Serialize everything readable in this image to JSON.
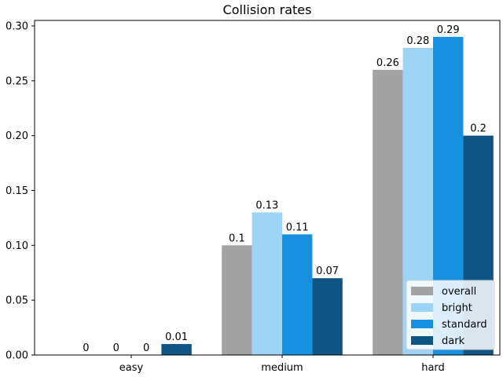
{
  "chart_data": {
    "type": "bar",
    "title": "Collision rates",
    "xlabel": "",
    "ylabel": "",
    "categories": [
      "easy",
      "medium",
      "hard"
    ],
    "series": [
      {
        "name": "overall",
        "color": "#a3a3a3",
        "values": [
          0,
          0.1,
          0.26
        ],
        "labels": [
          "0",
          "0.1",
          "0.26"
        ]
      },
      {
        "name": "bright",
        "color": "#9dd3f7",
        "values": [
          0,
          0.13,
          0.28
        ],
        "labels": [
          "0",
          "0.13",
          "0.28"
        ]
      },
      {
        "name": "standard",
        "color": "#1790e1",
        "values": [
          0,
          0.11,
          0.29
        ],
        "labels": [
          "0",
          "0.11",
          "0.29"
        ]
      },
      {
        "name": "dark",
        "color": "#0e5585",
        "values": [
          0.01,
          0.07,
          0.2
        ],
        "labels": [
          "0.01",
          "0.07",
          "0.2"
        ]
      }
    ],
    "yticks": [
      0.0,
      0.05,
      0.1,
      0.15,
      0.2,
      0.25,
      0.3
    ],
    "ytick_labels": [
      "0.00",
      "0.05",
      "0.10",
      "0.15",
      "0.20",
      "0.25",
      "0.30"
    ],
    "ylim": [
      0,
      0.3
    ],
    "grid": false,
    "legend_position": "bottom-right"
  }
}
